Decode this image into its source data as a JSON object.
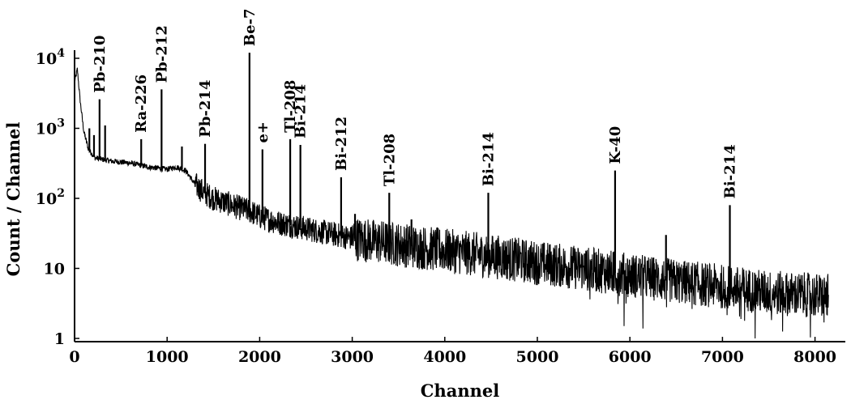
{
  "chart_data": {
    "type": "line",
    "xlabel": "Channel",
    "ylabel": "Count / Channel",
    "xlim": [
      0,
      8200
    ],
    "ylim": [
      1,
      10000
    ],
    "y_scale": "log",
    "grid": false,
    "x_ticks": [
      0,
      1000,
      2000,
      3000,
      4000,
      5000,
      6000,
      7000,
      8000
    ],
    "x_tick_labels": [
      "0",
      "1000",
      "2000",
      "3000",
      "4000",
      "5000",
      "6000",
      "7000",
      "8000"
    ],
    "y_ticks": [
      1,
      10,
      100,
      1000,
      10000
    ],
    "y_tick_labels": [
      {
        "base": "1",
        "exp": ""
      },
      {
        "base": "10",
        "exp": ""
      },
      {
        "base": "10",
        "exp": "2"
      },
      {
        "base": "10",
        "exp": "3"
      },
      {
        "base": "10",
        "exp": "4"
      }
    ],
    "continuum": [
      [
        0,
        4500
      ],
      [
        30,
        7000
      ],
      [
        60,
        2500
      ],
      [
        100,
        900
      ],
      [
        150,
        500
      ],
      [
        220,
        380
      ],
      [
        300,
        360
      ],
      [
        400,
        340
      ],
      [
        500,
        330
      ],
      [
        600,
        320
      ],
      [
        700,
        300
      ],
      [
        800,
        280
      ],
      [
        900,
        270
      ],
      [
        1000,
        260
      ],
      [
        1100,
        280
      ],
      [
        1200,
        250
      ],
      [
        1250,
        200
      ],
      [
        1300,
        160
      ],
      [
        1400,
        120
      ],
      [
        1500,
        100
      ],
      [
        1600,
        90
      ],
      [
        1700,
        80
      ],
      [
        1800,
        72
      ],
      [
        1900,
        65
      ],
      [
        2000,
        55
      ],
      [
        2200,
        45
      ],
      [
        2500,
        37
      ],
      [
        3000,
        27
      ],
      [
        3500,
        22
      ],
      [
        4000,
        18
      ],
      [
        4500,
        15
      ],
      [
        5000,
        12
      ],
      [
        5500,
        10
      ],
      [
        6000,
        8
      ],
      [
        6500,
        6.5
      ],
      [
        7000,
        5.5
      ],
      [
        7500,
        4.5
      ],
      [
        8150,
        4
      ]
    ],
    "peaks": [
      {
        "x": 160,
        "y": 1000
      },
      {
        "x": 210,
        "y": 800
      },
      {
        "x": 270,
        "y": 2600,
        "label": "Pb-210"
      },
      {
        "x": 330,
        "y": 1100
      },
      {
        "x": 720,
        "y": 700,
        "label": "Ra-226"
      },
      {
        "x": 940,
        "y": 3600,
        "label": "Pb-212"
      },
      {
        "x": 1160,
        "y": 550
      },
      {
        "x": 1410,
        "y": 600,
        "label": "Pb-214"
      },
      {
        "x": 1890,
        "y": 12000,
        "label": "Be-7"
      },
      {
        "x": 2030,
        "y": 500,
        "label": "e+"
      },
      {
        "x": 2330,
        "y": 700,
        "label": "Tl-208"
      },
      {
        "x": 2440,
        "y": 580,
        "label": "Bi-214"
      },
      {
        "x": 2880,
        "y": 200,
        "label": "Bi-212"
      },
      {
        "x": 3030,
        "y": 60
      },
      {
        "x": 3400,
        "y": 120,
        "label": "Tl-208"
      },
      {
        "x": 3640,
        "y": 50
      },
      {
        "x": 4470,
        "y": 120,
        "label": "Bi-214"
      },
      {
        "x": 5840,
        "y": 250,
        "label": "K-40"
      },
      {
        "x": 6390,
        "y": 30
      },
      {
        "x": 7080,
        "y": 80,
        "label": "Bi-214"
      }
    ]
  }
}
